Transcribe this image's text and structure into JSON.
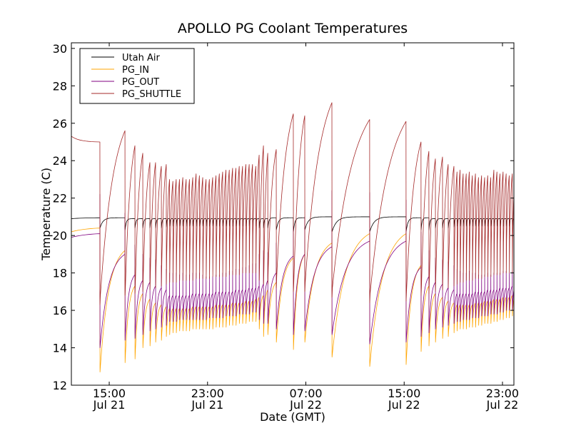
{
  "chart_data": {
    "type": "line",
    "title": "APOLLO PG Coolant Temperatures",
    "xlabel": "Date (GMT)",
    "ylabel": "Temperature (C)",
    "x_units": "hours since 2000-Jul-21 00:00 GMT (date year not shown)",
    "xlim": [
      11.92,
      47.93
    ],
    "ylim": [
      12,
      30.3
    ],
    "yticks": [
      12,
      14,
      16,
      18,
      20,
      22,
      24,
      26,
      28,
      30
    ],
    "yticklabels": [
      "12",
      "14",
      "16",
      "18",
      "20",
      "22",
      "24",
      "26",
      "28",
      "30"
    ],
    "xticks": [
      {
        "t": 15,
        "line1": "15:00",
        "line2": "Jul 21"
      },
      {
        "t": 23,
        "line1": "23:00",
        "line2": "Jul 21"
      },
      {
        "t": 31,
        "line1": "07:00",
        "line2": "Jul 22"
      },
      {
        "t": 39,
        "line1": "15:00",
        "line2": "Jul 22"
      },
      {
        "t": 47,
        "line1": "23:00",
        "line2": "Jul 22"
      }
    ],
    "grid": false,
    "legend": {
      "placement": "top-left",
      "entries": [
        {
          "name": "Utah Air",
          "color": "#000000"
        },
        {
          "name": "PG_IN",
          "color": "#FFA500"
        },
        {
          "name": "PG_OUT",
          "color": "#800080"
        },
        {
          "name": "PG_SHUTTLE",
          "color": "#A52A2A"
        }
      ]
    },
    "initial_state": {
      "t": 11.92,
      "utah_air": 20.9,
      "pg_in": 20.2,
      "pg_out": 19.9,
      "pg_shuttle": 25.3
    },
    "cycle_fields": [
      "t_drop",
      "shuttle_peak",
      "shuttle_min",
      "shuttle_trough",
      "out_pre",
      "out_spike",
      "out_min",
      "in_pre",
      "in_min",
      "air_pre",
      "air_min"
    ],
    "cycles": [
      [
        14.24,
        25.0,
        16.3,
        16.8,
        20.1,
        22.2,
        14.0,
        20.4,
        12.7,
        20.95,
        20.4
      ],
      [
        16.28,
        25.6,
        16.8,
        17.3,
        19.0,
        21.2,
        14.4,
        19.2,
        13.2,
        20.95,
        20.3
      ],
      [
        17.09,
        24.8,
        16.9,
        17.5,
        17.9,
        19.5,
        14.5,
        17.3,
        13.4,
        20.9,
        20.4
      ],
      [
        17.73,
        24.4,
        17.0,
        17.8,
        17.6,
        19.0,
        14.7,
        16.9,
        14.0,
        20.9,
        20.4
      ],
      [
        18.31,
        23.9,
        17.1,
        18.0,
        17.5,
        18.8,
        14.9,
        16.6,
        14.1,
        20.9,
        20.4
      ],
      [
        18.77,
        23.9,
        17.2,
        18.3,
        17.3,
        18.7,
        15.0,
        16.4,
        14.3,
        20.9,
        20.4
      ],
      [
        19.24,
        23.7,
        17.3,
        18.6,
        17.2,
        18.4,
        15.1,
        16.3,
        14.4,
        20.9,
        20.4
      ],
      [
        19.64,
        23.8,
        17.4,
        18.9,
        17.1,
        18.2,
        15.2,
        16.2,
        14.6,
        20.9,
        20.45
      ],
      [
        19.91,
        23.0,
        17.5,
        19.0,
        16.8,
        18.0,
        15.4,
        16.1,
        14.7,
        20.9,
        20.5
      ],
      [
        20.18,
        22.9,
        17.5,
        19.0,
        16.8,
        18.0,
        15.4,
        16.1,
        14.8,
        20.9,
        20.5
      ],
      [
        20.45,
        23.0,
        17.5,
        19.0,
        16.8,
        18.0,
        15.4,
        16.1,
        14.8,
        20.9,
        20.5
      ],
      [
        20.72,
        23.0,
        17.6,
        19.1,
        16.8,
        17.9,
        15.5,
        16.1,
        14.9,
        20.9,
        20.5
      ],
      [
        20.99,
        23.1,
        17.6,
        19.1,
        16.8,
        18.0,
        15.5,
        16.1,
        14.9,
        20.9,
        20.5
      ],
      [
        21.26,
        23.0,
        17.6,
        19.1,
        16.8,
        17.9,
        15.5,
        16.1,
        14.9,
        20.9,
        20.5
      ],
      [
        21.53,
        23.0,
        17.6,
        19.1,
        16.8,
        17.9,
        15.5,
        16.1,
        14.9,
        20.9,
        20.5
      ],
      [
        21.8,
        23.1,
        17.6,
        19.1,
        16.9,
        18.0,
        15.5,
        16.2,
        15.0,
        20.9,
        20.5
      ],
      [
        22.07,
        23.3,
        17.7,
        19.2,
        16.9,
        18.0,
        15.5,
        16.2,
        15.0,
        20.9,
        20.5
      ],
      [
        22.34,
        23.2,
        17.7,
        19.2,
        16.9,
        18.0,
        15.5,
        16.2,
        15.0,
        20.9,
        20.5
      ],
      [
        22.61,
        23.1,
        17.7,
        19.2,
        16.9,
        17.9,
        15.5,
        16.2,
        15.0,
        20.9,
        20.5
      ],
      [
        22.88,
        23.0,
        17.7,
        19.2,
        16.9,
        17.8,
        15.5,
        16.2,
        15.0,
        20.9,
        20.5
      ],
      [
        23.15,
        23.0,
        17.7,
        19.3,
        16.9,
        17.8,
        15.6,
        16.2,
        15.0,
        20.9,
        20.5
      ],
      [
        23.42,
        23.1,
        17.8,
        19.3,
        16.9,
        17.8,
        15.6,
        16.2,
        15.0,
        20.9,
        20.5
      ],
      [
        23.69,
        23.2,
        17.8,
        19.3,
        17.0,
        17.9,
        15.6,
        16.3,
        15.1,
        20.9,
        20.5
      ],
      [
        23.96,
        23.3,
        17.8,
        19.4,
        17.0,
        17.9,
        15.6,
        16.3,
        15.1,
        20.9,
        20.5
      ],
      [
        24.23,
        23.4,
        17.8,
        19.4,
        17.0,
        18.0,
        15.6,
        16.3,
        15.1,
        20.9,
        20.5
      ],
      [
        24.5,
        23.5,
        17.8,
        19.5,
        17.0,
        18.0,
        15.7,
        16.3,
        15.1,
        20.9,
        20.5
      ],
      [
        24.77,
        23.5,
        17.9,
        19.5,
        17.0,
        18.1,
        15.7,
        16.3,
        15.2,
        20.9,
        20.5
      ],
      [
        25.04,
        23.6,
        17.9,
        19.6,
        17.0,
        18.1,
        15.7,
        16.4,
        15.2,
        20.9,
        20.5
      ],
      [
        25.31,
        23.6,
        17.9,
        19.6,
        17.1,
        18.2,
        15.7,
        16.4,
        15.2,
        20.9,
        20.5
      ],
      [
        25.58,
        23.7,
        17.9,
        19.7,
        17.1,
        18.2,
        15.8,
        16.4,
        15.3,
        20.9,
        20.5
      ],
      [
        25.85,
        23.7,
        18.0,
        19.8,
        17.1,
        18.3,
        15.8,
        16.4,
        15.3,
        20.9,
        20.5
      ],
      [
        26.12,
        23.8,
        18.0,
        19.9,
        17.1,
        18.3,
        15.8,
        16.5,
        15.3,
        20.9,
        20.5
      ],
      [
        26.39,
        23.8,
        18.0,
        19.9,
        17.2,
        18.4,
        15.8,
        16.5,
        15.4,
        20.9,
        20.5
      ],
      [
        26.66,
        23.8,
        18.0,
        20.0,
        17.2,
        18.5,
        15.9,
        16.5,
        15.4,
        20.9,
        20.5
      ],
      [
        26.93,
        23.7,
        18.0,
        20.0,
        17.2,
        18.5,
        15.9,
        16.6,
        15.4,
        20.9,
        20.5
      ],
      [
        27.2,
        24.3,
        17.6,
        18.6,
        17.3,
        19.0,
        15.5,
        16.7,
        15.0,
        20.9,
        20.4
      ],
      [
        27.55,
        24.8,
        17.4,
        18.2,
        17.4,
        19.2,
        15.3,
        16.8,
        14.6,
        20.9,
        20.4
      ],
      [
        27.9,
        24.4,
        17.4,
        18.2,
        17.6,
        19.1,
        15.3,
        17.1,
        14.7,
        20.9,
        20.4
      ],
      [
        28.59,
        24.6,
        17.2,
        17.8,
        18.0,
        19.6,
        15.0,
        17.5,
        14.3,
        20.95,
        20.3
      ],
      [
        29.98,
        26.5,
        17.0,
        17.5,
        18.9,
        20.5,
        14.7,
        18.8,
        13.9,
        20.95,
        20.2
      ],
      [
        30.91,
        26.4,
        17.0,
        17.5,
        19.0,
        21.0,
        14.9,
        19.0,
        14.3,
        20.95,
        20.3
      ],
      [
        33.12,
        27.1,
        16.7,
        17.2,
        19.4,
        22.4,
        14.7,
        19.6,
        13.5,
        21.0,
        20.2
      ],
      [
        36.19,
        26.2,
        16.4,
        16.9,
        19.7,
        22.3,
        14.2,
        20.1,
        13.0,
        21.0,
        20.2
      ],
      [
        39.15,
        26.1,
        16.5,
        17.0,
        19.7,
        21.9,
        14.3,
        20.1,
        13.1,
        21.0,
        20.2
      ],
      [
        40.37,
        25.0,
        16.8,
        17.3,
        18.3,
        20.2,
        14.6,
        18.4,
        13.8,
        20.95,
        20.3
      ],
      [
        41.01,
        24.5,
        16.9,
        17.6,
        17.8,
        19.2,
        14.8,
        17.3,
        14.1,
        20.95,
        20.3
      ],
      [
        41.54,
        24.1,
        17.0,
        17.9,
        17.5,
        18.8,
        15.0,
        16.9,
        14.3,
        20.9,
        20.4
      ],
      [
        42.12,
        24.2,
        17.1,
        18.2,
        17.4,
        18.7,
        15.1,
        16.7,
        14.5,
        20.9,
        20.4
      ],
      [
        42.58,
        23.8,
        17.2,
        18.5,
        17.2,
        18.6,
        15.2,
        16.5,
        14.6,
        20.9,
        20.4
      ],
      [
        43.05,
        23.7,
        17.3,
        18.7,
        17.1,
        18.4,
        15.3,
        16.4,
        14.8,
        20.9,
        20.45
      ],
      [
        43.3,
        23.4,
        17.4,
        18.8,
        16.9,
        18.2,
        15.4,
        16.3,
        14.9,
        20.9,
        20.5
      ],
      [
        43.55,
        23.5,
        17.5,
        18.9,
        16.9,
        18.1,
        15.4,
        16.3,
        15.0,
        20.9,
        20.5
      ],
      [
        43.8,
        23.3,
        17.5,
        19.0,
        16.9,
        18.0,
        15.5,
        16.3,
        15.0,
        20.9,
        20.5
      ],
      [
        44.05,
        23.3,
        17.6,
        19.0,
        16.9,
        18.0,
        15.5,
        16.3,
        15.0,
        20.9,
        20.5
      ],
      [
        44.3,
        23.4,
        17.6,
        19.1,
        16.9,
        18.1,
        15.5,
        16.3,
        15.1,
        20.9,
        20.5
      ],
      [
        44.55,
        23.2,
        17.6,
        19.1,
        16.9,
        18.0,
        15.6,
        16.3,
        15.1,
        20.9,
        20.5
      ],
      [
        44.8,
        23.3,
        17.7,
        19.2,
        17.0,
        18.0,
        15.6,
        16.4,
        15.1,
        20.9,
        20.5
      ],
      [
        45.05,
        23.1,
        17.7,
        19.2,
        17.0,
        17.9,
        15.6,
        16.4,
        15.2,
        20.9,
        20.5
      ],
      [
        45.3,
        23.2,
        17.7,
        19.3,
        17.0,
        17.9,
        15.7,
        16.4,
        15.2,
        20.9,
        20.5
      ],
      [
        45.55,
        23.1,
        17.8,
        19.3,
        17.0,
        17.9,
        15.7,
        16.5,
        15.3,
        20.9,
        20.5
      ],
      [
        45.8,
        23.2,
        17.8,
        19.4,
        17.1,
        18.0,
        15.7,
        16.5,
        15.3,
        20.9,
        20.5
      ],
      [
        46.05,
        23.1,
        17.8,
        19.4,
        17.1,
        17.9,
        15.8,
        16.5,
        15.3,
        20.9,
        20.5
      ],
      [
        46.3,
        23.5,
        17.9,
        19.5,
        17.1,
        18.0,
        15.8,
        16.6,
        15.4,
        20.9,
        20.5
      ],
      [
        46.55,
        23.4,
        17.9,
        19.5,
        17.1,
        18.0,
        15.8,
        16.6,
        15.4,
        20.9,
        20.5
      ],
      [
        46.8,
        23.3,
        17.9,
        19.6,
        17.2,
        18.0,
        15.9,
        16.6,
        15.5,
        20.9,
        20.5
      ],
      [
        47.05,
        23.4,
        18.0,
        19.6,
        17.2,
        18.1,
        15.9,
        16.7,
        15.5,
        20.9,
        20.5
      ],
      [
        47.3,
        23.3,
        18.0,
        19.7,
        17.2,
        18.1,
        16.0,
        16.7,
        15.6,
        20.9,
        20.5
      ],
      [
        47.55,
        23.2,
        18.0,
        19.7,
        17.2,
        18.0,
        16.0,
        16.7,
        15.6,
        20.9,
        20.5
      ],
      [
        47.8,
        23.3,
        18.0,
        19.8,
        17.3,
        18.1,
        16.0,
        16.8,
        15.7,
        20.9,
        20.5
      ]
    ],
    "series": [
      {
        "key": "utah_air",
        "name": "Utah Air",
        "color": "#000000"
      },
      {
        "key": "pg_in",
        "name": "PG_IN",
        "color": "#FFA500"
      },
      {
        "key": "pg_out",
        "name": "PG_OUT",
        "color": "#800080"
      },
      {
        "key": "pg_shuttle",
        "name": "PG_SHUTTLE",
        "color": "#A52A2A"
      }
    ]
  }
}
